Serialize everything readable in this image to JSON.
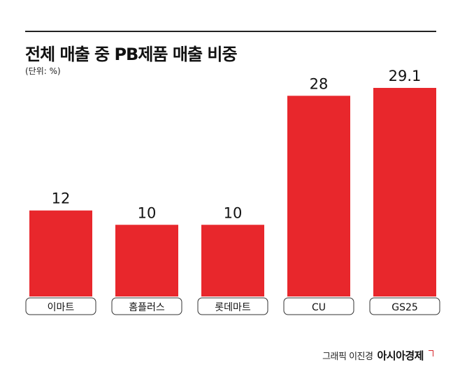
{
  "chart_data": {
    "type": "bar",
    "title": "전체 매출 중 PB제품 매출 비중",
    "unit_label": "(단위: %)",
    "categories": [
      "이마트",
      "홈플러스",
      "롯데마트",
      "CU",
      "GS25"
    ],
    "values": [
      12,
      10,
      10,
      28,
      29.1
    ],
    "value_labels": [
      "12",
      "10",
      "10",
      "28",
      "29.1"
    ],
    "ylim": [
      0,
      29.1
    ],
    "grid": false,
    "legend": "none",
    "bar_color": "#e8272c",
    "xlabel": "",
    "ylabel": ""
  },
  "credit": {
    "text": "그래픽 이진경",
    "logo": "아시아경제"
  }
}
